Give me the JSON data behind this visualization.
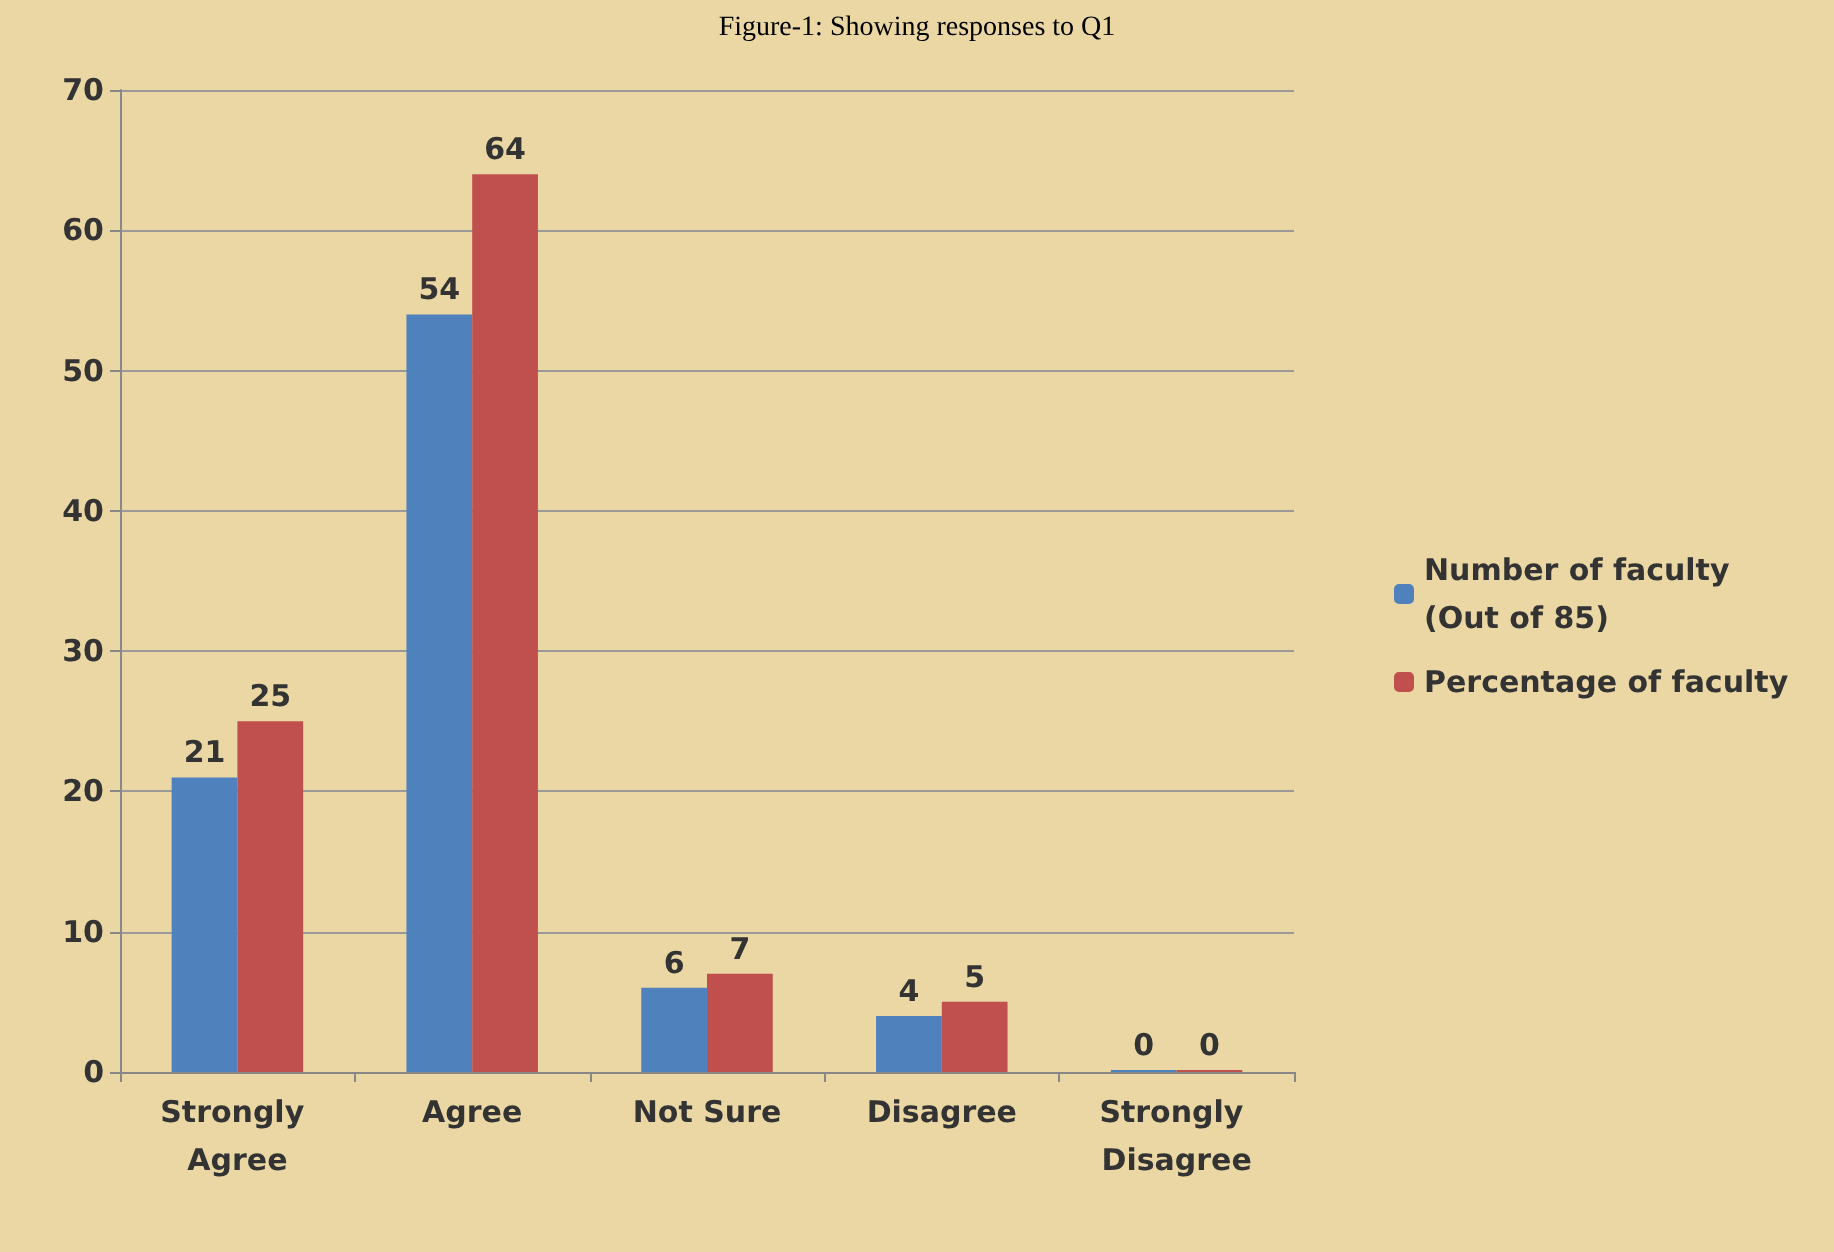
{
  "chart_data": {
    "type": "bar",
    "title": "Figure-1: Showing responses to Q1",
    "categories": [
      "Strongly Agree",
      "Agree",
      "Not Sure",
      "Disagree",
      "Strongly Disagree"
    ],
    "series": [
      {
        "name": "Number of faculty (Out of 85)",
        "color": "#4f81bd",
        "values": [
          21,
          54,
          6,
          4,
          0
        ]
      },
      {
        "name": "Percentage of faculty",
        "color": "#c0504d",
        "values": [
          25,
          64,
          7,
          5,
          0
        ]
      }
    ],
    "ylim": [
      0,
      70
    ],
    "yticks": [
      0,
      10,
      20,
      30,
      40,
      50,
      60,
      70
    ],
    "grid": "y",
    "legend": "right",
    "data_labels": true
  }
}
